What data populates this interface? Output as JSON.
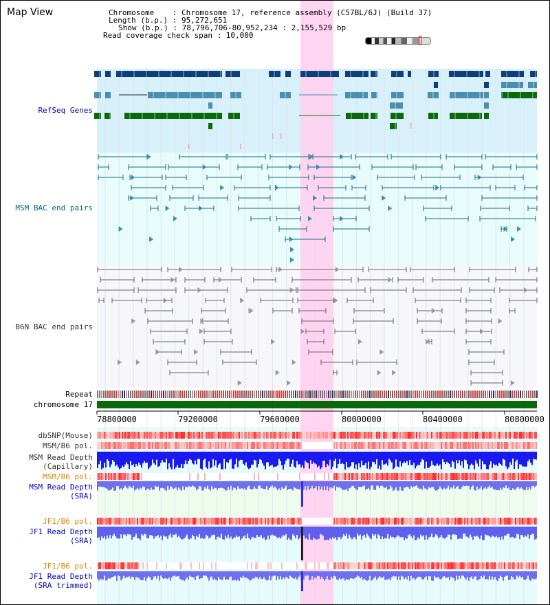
{
  "page": {
    "title": "Map View"
  },
  "info": {
    "chromosome_label": "Chromosome    : Chromosome 17, reference assembly (C57BL/6J) (Build 37)",
    "length_label": "Length (b.p.) : 95,272,651",
    "show_label": "Show (b.p.) : 78,796,706-80,952,234 : 2,155,529 bp",
    "span_label": "Read coverage check span : 10,000"
  },
  "tracks": {
    "refseq": "RefSeq Genes",
    "msm_bac": "MSM BAC end pairs",
    "b6n_bac": "B6N BAC end pairs",
    "repeat": "Repeat",
    "chromosome": "chromosome 17",
    "dbsnp": "dbSNP(Mouse)",
    "msm_b6_pol_1": "MSM/B6 pol.",
    "msm_read_depth_cap_1": "MSM Read Depth",
    "msm_read_depth_cap_2": "(Capillary)",
    "msm_b6_pol_2": "MSM/B6 pol.",
    "msm_read_depth_sra_1": "MSM Read Depth",
    "msm_read_depth_sra_2": "(SRA)",
    "jf1_b6_pol_1": "JF1/B6 pol.",
    "jf1_read_depth_sra_1": "JF1 Read Depth",
    "jf1_read_depth_sra_2": "(SRA)",
    "jf1_b6_pol_2": "JF1/B6 pol.",
    "jf1_read_depth_trim_1": "JF1 Read Depth",
    "jf1_read_depth_trim_2": "(SRA trimmed)"
  },
  "axis": {
    "ticks": [
      "78800000",
      "79200000",
      "79600000",
      "80000000",
      "80400000",
      "80800000"
    ]
  },
  "colors": {
    "highlight": "#ffd0f0",
    "refseq_bg": "#d8f0fa",
    "bac_bg": "#e8fcfc",
    "gene_dark": "#0f3f7a",
    "gene_mid": "#4a8fb0",
    "gene_green": "#0a6a0a",
    "bac_line": "#1a6a80",
    "chromosome_bar": "#0a6a0a"
  }
}
